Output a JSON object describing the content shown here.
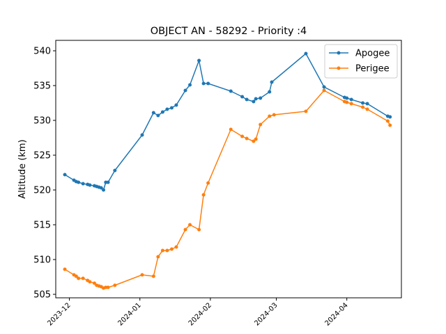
{
  "chart_data": {
    "type": "line",
    "title": "OBJECT AN - 58292 - Priority :4",
    "xlabel": "",
    "ylabel": "Altitude (km)",
    "x_type": "date",
    "xlim": [
      "2023-11-25",
      "2024-04-25"
    ],
    "ylim": [
      504.5,
      541.5
    ],
    "yticks": [
      505,
      510,
      515,
      520,
      525,
      530,
      535,
      540
    ],
    "xticks": [
      "2023-12",
      "2024-01",
      "2024-02",
      "2024-03",
      "2024-04"
    ],
    "grid": false,
    "legend": "top-right",
    "series": [
      {
        "name": "Apogee",
        "color": "#1f77b4",
        "points": [
          [
            "2023-11-29",
            522.2
          ],
          [
            "2023-12-03",
            521.4
          ],
          [
            "2023-12-04",
            521.2
          ],
          [
            "2023-12-05",
            521.1
          ],
          [
            "2023-12-07",
            520.9
          ],
          [
            "2023-12-09",
            520.8
          ],
          [
            "2023-12-10",
            520.7
          ],
          [
            "2023-12-12",
            520.6
          ],
          [
            "2023-12-13",
            520.5
          ],
          [
            "2023-12-14",
            520.4
          ],
          [
            "2023-12-15",
            520.3
          ],
          [
            "2023-12-16",
            520.0
          ],
          [
            "2023-12-17",
            521.1
          ],
          [
            "2023-12-18",
            521.1
          ],
          [
            "2023-12-21",
            522.8
          ],
          [
            "2024-01-02",
            527.9
          ],
          [
            "2024-01-07",
            531.1
          ],
          [
            "2024-01-09",
            530.7
          ],
          [
            "2024-01-11",
            531.2
          ],
          [
            "2024-01-13",
            531.6
          ],
          [
            "2024-01-15",
            531.8
          ],
          [
            "2024-01-17",
            532.2
          ],
          [
            "2024-01-21",
            534.3
          ],
          [
            "2024-01-23",
            535.1
          ],
          [
            "2024-01-27",
            538.6
          ],
          [
            "2024-01-29",
            535.3
          ],
          [
            "2024-01-31",
            535.3
          ],
          [
            "2024-02-10",
            534.2
          ],
          [
            "2024-02-15",
            533.4
          ],
          [
            "2024-02-17",
            533.0
          ],
          [
            "2024-02-20",
            532.7
          ],
          [
            "2024-02-21",
            533.1
          ],
          [
            "2024-02-23",
            533.2
          ],
          [
            "2024-02-27",
            534.1
          ],
          [
            "2024-02-28",
            535.5
          ],
          [
            "2024-03-14",
            539.6
          ],
          [
            "2024-03-22",
            534.8
          ],
          [
            "2024-03-31",
            533.3
          ],
          [
            "2024-04-01",
            533.2
          ],
          [
            "2024-04-03",
            533.0
          ],
          [
            "2024-04-08",
            532.5
          ],
          [
            "2024-04-10",
            532.4
          ],
          [
            "2024-04-19",
            530.6
          ],
          [
            "2024-04-20",
            530.5
          ]
        ]
      },
      {
        "name": "Perigee",
        "color": "#ff7f0e",
        "points": [
          [
            "2023-11-29",
            508.6
          ],
          [
            "2023-12-03",
            507.8
          ],
          [
            "2023-12-04",
            507.6
          ],
          [
            "2023-12-05",
            507.3
          ],
          [
            "2023-12-07",
            507.3
          ],
          [
            "2023-12-09",
            507.0
          ],
          [
            "2023-12-10",
            506.8
          ],
          [
            "2023-12-12",
            506.6
          ],
          [
            "2023-12-13",
            506.3
          ],
          [
            "2023-12-14",
            506.2
          ],
          [
            "2023-12-15",
            506.1
          ],
          [
            "2023-12-16",
            505.9
          ],
          [
            "2023-12-17",
            506.0
          ],
          [
            "2023-12-18",
            506.0
          ],
          [
            "2023-12-21",
            506.3
          ],
          [
            "2024-01-02",
            507.8
          ],
          [
            "2024-01-07",
            507.6
          ],
          [
            "2024-01-09",
            510.4
          ],
          [
            "2024-01-11",
            511.3
          ],
          [
            "2024-01-13",
            511.3
          ],
          [
            "2024-01-15",
            511.5
          ],
          [
            "2024-01-17",
            511.8
          ],
          [
            "2024-01-21",
            514.3
          ],
          [
            "2024-01-23",
            515.0
          ],
          [
            "2024-01-27",
            514.3
          ],
          [
            "2024-01-29",
            519.3
          ],
          [
            "2024-01-31",
            521.0
          ],
          [
            "2024-02-10",
            528.7
          ],
          [
            "2024-02-15",
            527.7
          ],
          [
            "2024-02-17",
            527.4
          ],
          [
            "2024-02-20",
            527.0
          ],
          [
            "2024-02-21",
            527.3
          ],
          [
            "2024-02-23",
            529.4
          ],
          [
            "2024-02-27",
            530.6
          ],
          [
            "2024-02-29",
            530.8
          ],
          [
            "2024-03-14",
            531.3
          ],
          [
            "2024-03-22",
            534.3
          ],
          [
            "2024-03-31",
            532.7
          ],
          [
            "2024-04-01",
            532.6
          ],
          [
            "2024-04-03",
            532.4
          ],
          [
            "2024-04-08",
            531.9
          ],
          [
            "2024-04-10",
            531.6
          ],
          [
            "2024-04-19",
            529.9
          ],
          [
            "2024-04-20",
            529.3
          ]
        ]
      }
    ]
  }
}
